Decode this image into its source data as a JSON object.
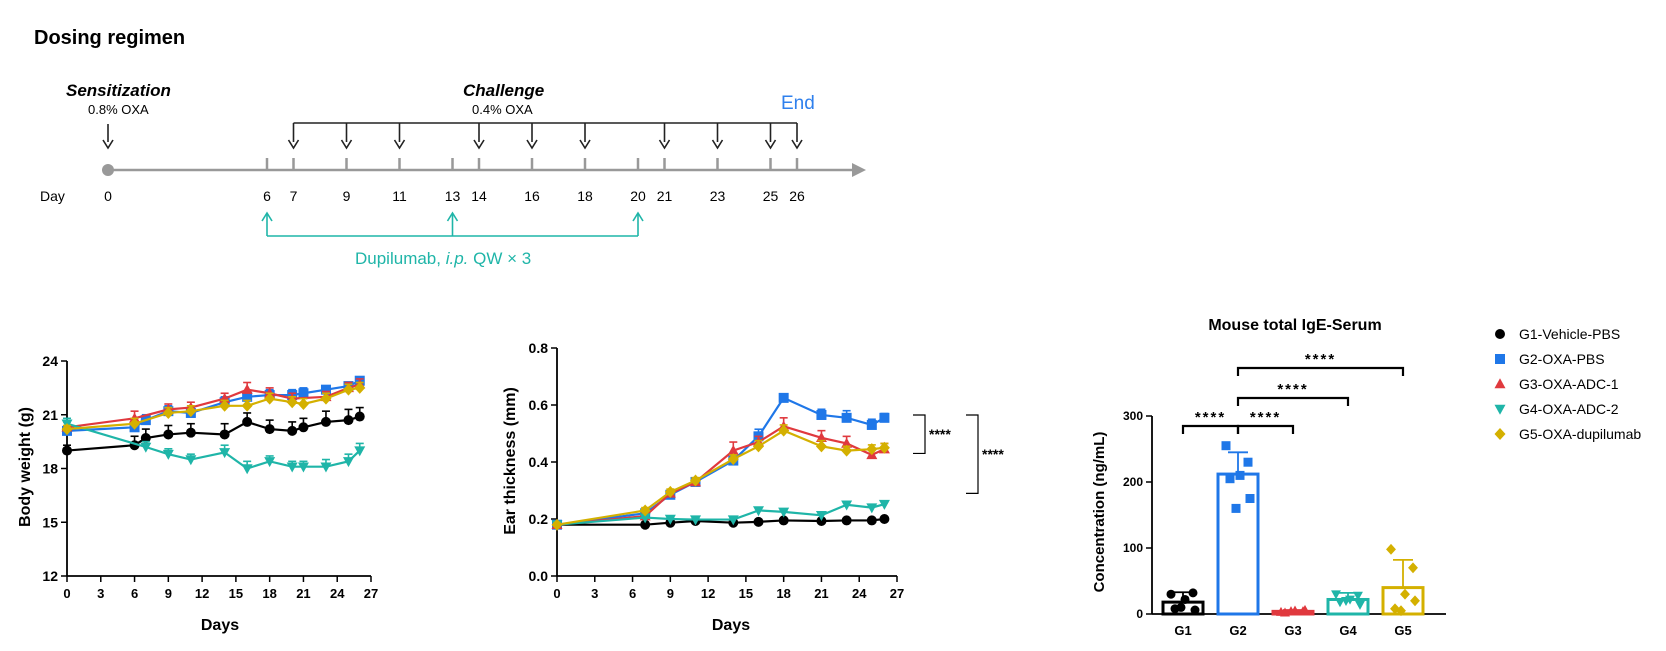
{
  "timeline": {
    "title": "Dosing regimen",
    "sensitization_label": "Sensitization",
    "sensitization_dose": "0.8% OXA",
    "challenge_label": "Challenge",
    "challenge_dose": "0.4% OXA",
    "end_label": "End",
    "day_label": "Day",
    "days": [
      0,
      6,
      7,
      9,
      11,
      13,
      14,
      16,
      18,
      20,
      21,
      23,
      25,
      26
    ],
    "sensitization_days": [
      0
    ],
    "challenge_days": [
      7,
      9,
      11,
      14,
      16,
      18,
      21,
      23,
      25,
      26
    ],
    "dupilumab_days": [
      6,
      13,
      20
    ],
    "dupilumab_label_pre": "Dupilumab, ",
    "dupilumab_label_route": "i.p.",
    "dupilumab_label_post": " QW  × 3",
    "colors": {
      "axis": "#999999",
      "arrow": "#222222",
      "dupilumab": "#1fb5a8",
      "end": "#2f80ed"
    }
  },
  "legend": [
    {
      "name": "G1-Vehicle-PBS",
      "color": "#000000",
      "marker": "circle"
    },
    {
      "name": "G2-OXA-PBS",
      "color": "#1f77e8",
      "marker": "square"
    },
    {
      "name": "G3-OXA-ADC-1",
      "color": "#e0393e",
      "marker": "triangle-up"
    },
    {
      "name": "G4-OXA-ADC-2",
      "color": "#1fb5a8",
      "marker": "triangle-down"
    },
    {
      "name": "G5-OXA-dupilumab",
      "color": "#d4b000",
      "marker": "diamond"
    }
  ],
  "chart_data": [
    {
      "type": "line",
      "title": "",
      "xlabel": "Days",
      "ylabel": "Body weight (g)",
      "xlim": [
        0,
        27
      ],
      "ylim": [
        12,
        24
      ],
      "xticks": [
        "0",
        "3",
        "6",
        "9",
        "12",
        "15",
        "18",
        "21",
        "24",
        "27"
      ],
      "yticks": [
        "12",
        "15",
        "18",
        "21",
        "24"
      ],
      "series": [
        {
          "name": "G1-Vehicle-PBS",
          "x": [
            0,
            6,
            7,
            9,
            11,
            14,
            16,
            18,
            20,
            21,
            23,
            25,
            26
          ],
          "y": [
            19.0,
            19.3,
            19.7,
            19.9,
            20.0,
            19.9,
            20.6,
            20.2,
            20.1,
            20.3,
            20.6,
            20.7,
            20.9
          ],
          "err": [
            0.3,
            0.5,
            0.5,
            0.5,
            0.5,
            0.6,
            0.5,
            0.5,
            0.5,
            0.5,
            0.6,
            0.6,
            0.5
          ]
        },
        {
          "name": "G2-OXA-PBS",
          "x": [
            0,
            6,
            7,
            9,
            11,
            14,
            16,
            18,
            20,
            21,
            23,
            25,
            26
          ],
          "y": [
            20.1,
            20.3,
            20.7,
            21.2,
            21.1,
            21.7,
            22.0,
            22.1,
            22.1,
            22.2,
            22.4,
            22.6,
            22.9
          ],
          "err": [
            0.2,
            0.3,
            0.3,
            0.3,
            0.3,
            0.3,
            0.3,
            0.3,
            0.3,
            0.3,
            0.2,
            0.2,
            0.2
          ]
        },
        {
          "name": "G3-OXA-ADC-1",
          "x": [
            0,
            6,
            9,
            11,
            14,
            16,
            18,
            20,
            23,
            25,
            26
          ],
          "y": [
            20.3,
            20.8,
            21.3,
            21.4,
            21.9,
            22.4,
            22.2,
            21.9,
            22.0,
            22.5,
            22.7
          ],
          "err": [
            0.3,
            0.4,
            0.3,
            0.3,
            0.3,
            0.4,
            0.3,
            0.3,
            0.3,
            0.3,
            0.3
          ]
        },
        {
          "name": "G4-OXA-ADC-2",
          "x": [
            0,
            7,
            9,
            11,
            14,
            16,
            18,
            20,
            21,
            23,
            25,
            26
          ],
          "y": [
            20.5,
            19.2,
            18.8,
            18.5,
            18.9,
            18.0,
            18.4,
            18.1,
            18.1,
            18.1,
            18.4,
            19.0
          ],
          "err": [
            0.3,
            0.3,
            0.3,
            0.3,
            0.4,
            0.4,
            0.3,
            0.3,
            0.3,
            0.4,
            0.4,
            0.4
          ]
        },
        {
          "name": "G5-OXA-dupilumab",
          "x": [
            0,
            6,
            9,
            11,
            14,
            16,
            18,
            20,
            21,
            23,
            25,
            26
          ],
          "y": [
            20.2,
            20.5,
            21.1,
            21.2,
            21.5,
            21.5,
            21.9,
            21.7,
            21.6,
            21.9,
            22.4,
            22.5
          ],
          "err": [
            0.2,
            0.3,
            0.3,
            0.3,
            0.3,
            0.3,
            0.3,
            0.3,
            0.3,
            0.3,
            0.3,
            0.3
          ]
        }
      ]
    },
    {
      "type": "line",
      "title": "",
      "xlabel": "Days",
      "ylabel": "Ear thickness (mm)",
      "xlim": [
        0,
        27
      ],
      "ylim": [
        0.0,
        0.8
      ],
      "xticks": [
        "0",
        "3",
        "6",
        "9",
        "12",
        "15",
        "18",
        "21",
        "24",
        "27"
      ],
      "yticks": [
        "0.0",
        "0.2",
        "0.4",
        "0.6",
        "0.8"
      ],
      "series": [
        {
          "name": "G1-Vehicle-PBS",
          "x": [
            0,
            7,
            9,
            11,
            14,
            16,
            18,
            21,
            23,
            25,
            26
          ],
          "y": [
            0.18,
            0.18,
            0.187,
            0.193,
            0.187,
            0.19,
            0.195,
            0.193,
            0.195,
            0.195,
            0.2
          ],
          "err": [
            0.005,
            0.005,
            0.005,
            0.005,
            0.005,
            0.005,
            0.005,
            0.005,
            0.005,
            0.005,
            0.005
          ]
        },
        {
          "name": "G2-OXA-PBS",
          "x": [
            0,
            7,
            9,
            11,
            14,
            16,
            18,
            21,
            23,
            25,
            26
          ],
          "y": [
            0.18,
            0.22,
            0.285,
            0.33,
            0.405,
            0.49,
            0.625,
            0.565,
            0.555,
            0.53,
            0.555
          ],
          "err": [
            0.005,
            0.01,
            0.01,
            0.01,
            0.02,
            0.025,
            0.01,
            0.02,
            0.025,
            0.02,
            0.015
          ]
        },
        {
          "name": "G3-OXA-ADC-1",
          "x": [
            0,
            7,
            9,
            11,
            14,
            16,
            18,
            21,
            23,
            25,
            26
          ],
          "y": [
            0.18,
            0.21,
            0.29,
            0.33,
            0.44,
            0.47,
            0.525,
            0.485,
            0.465,
            0.425,
            0.445
          ],
          "err": [
            0.005,
            0.01,
            0.01,
            0.01,
            0.03,
            0.02,
            0.03,
            0.025,
            0.025,
            0.02,
            0.02
          ]
        },
        {
          "name": "G4-OXA-ADC-2",
          "x": [
            0,
            7,
            9,
            11,
            14,
            16,
            18,
            21,
            23,
            25,
            26
          ],
          "y": [
            0.18,
            0.205,
            0.2,
            0.198,
            0.198,
            0.23,
            0.225,
            0.213,
            0.25,
            0.24,
            0.252
          ],
          "err": [
            0.005,
            0.005,
            0.005,
            0.005,
            0.005,
            0.008,
            0.005,
            0.005,
            0.008,
            0.008,
            0.008
          ]
        },
        {
          "name": "G5-OXA-dupilumab",
          "x": [
            0,
            7,
            9,
            11,
            14,
            16,
            18,
            21,
            23,
            25,
            26
          ],
          "y": [
            0.18,
            0.23,
            0.295,
            0.335,
            0.41,
            0.455,
            0.51,
            0.455,
            0.44,
            0.445,
            0.45
          ],
          "err": [
            0.005,
            0.01,
            0.01,
            0.01,
            0.015,
            0.02,
            0.02,
            0.02,
            0.015,
            0.015,
            0.015
          ]
        }
      ],
      "significance": [
        {
          "label": "****",
          "between": [
            "G2-OXA-PBS",
            "G3-OXA-ADC-1"
          ]
        },
        {
          "label": "****",
          "between": [
            "G2-OXA-PBS",
            "G4-OXA-ADC-2"
          ]
        }
      ]
    },
    {
      "type": "bar",
      "title": "Mouse total IgE-Serum",
      "xlabel": "",
      "ylabel": "Concentration (ng/mL)",
      "ylim": [
        0,
        300
      ],
      "yticks": [
        "0",
        "100",
        "200",
        "300"
      ],
      "categories": [
        "G1",
        "G2",
        "G3",
        "G4",
        "G5"
      ],
      "values": [
        18,
        212,
        4,
        22,
        40
      ],
      "err": [
        15,
        33,
        2,
        10,
        42
      ],
      "points": [
        [
          30,
          32,
          22,
          8,
          6,
          10
        ],
        [
          255,
          230,
          210,
          205,
          175,
          160
        ],
        [
          3,
          4,
          5,
          2,
          6,
          4
        ],
        [
          30,
          28,
          22,
          18,
          14,
          20
        ],
        [
          98,
          70,
          30,
          8,
          20,
          5
        ]
      ],
      "significance": [
        {
          "label": "****",
          "pair": [
            "G1",
            "G2"
          ]
        },
        {
          "label": "****",
          "pair": [
            "G2",
            "G3"
          ]
        },
        {
          "label": "****",
          "pair": [
            "G2",
            "G4"
          ]
        },
        {
          "label": "****",
          "pair": [
            "G2",
            "G5"
          ]
        }
      ]
    }
  ]
}
